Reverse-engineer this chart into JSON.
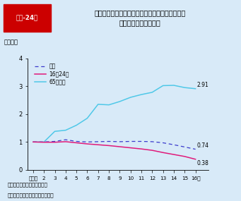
{
  "title_box_text": "第１-24図",
  "title_main": "自動車（第１当事者）運転者の若者・高齢者別死\n亡事故発生件数の推移",
  "ylabel": "（指数）",
  "xlabel_suffix": "年",
  "x_labels": [
    "平成元",
    "2",
    "3",
    "4",
    "5",
    "6",
    "7",
    "8",
    "9",
    "10",
    "11",
    "12",
    "13",
    "14",
    "15",
    "16"
  ],
  "x_values": [
    0,
    1,
    2,
    3,
    4,
    5,
    6,
    7,
    8,
    9,
    10,
    11,
    12,
    13,
    14,
    15
  ],
  "total": [
    1.0,
    1.0,
    1.02,
    1.08,
    1.02,
    1.0,
    1.01,
    1.02,
    1.01,
    1.02,
    1.02,
    1.01,
    0.97,
    0.9,
    0.82,
    0.74
  ],
  "young": [
    1.0,
    0.99,
    0.99,
    1.01,
    0.97,
    0.93,
    0.9,
    0.87,
    0.83,
    0.79,
    0.75,
    0.7,
    0.62,
    0.55,
    0.48,
    0.38
  ],
  "elderly": [
    1.0,
    1.0,
    1.38,
    1.42,
    1.6,
    1.85,
    2.35,
    2.33,
    2.45,
    2.6,
    2.7,
    2.78,
    3.02,
    3.03,
    2.95,
    2.91
  ],
  "total_color": "#3a3acc",
  "young_color": "#e0197a",
  "elderly_color": "#4fc8e8",
  "bg_color": "#d8eaf8",
  "title_bg": "#ffffff",
  "plot_bg_color": "#d8eaf8",
  "ylim": [
    0,
    4
  ],
  "yticks": [
    0,
    1,
    2,
    3,
    4
  ],
  "note1": "注　１　警察庁資料による。",
  "note2": "　　２　平成元年を１とした指数",
  "legend_total": "総数",
  "legend_young": "16～24歳",
  "legend_elderly": "65歳以上",
  "end_label_total": "0.74",
  "end_label_young": "0.38",
  "end_label_elderly": "2.91",
  "badge_color": "#cc0000",
  "badge_text_color": "#ffffff"
}
